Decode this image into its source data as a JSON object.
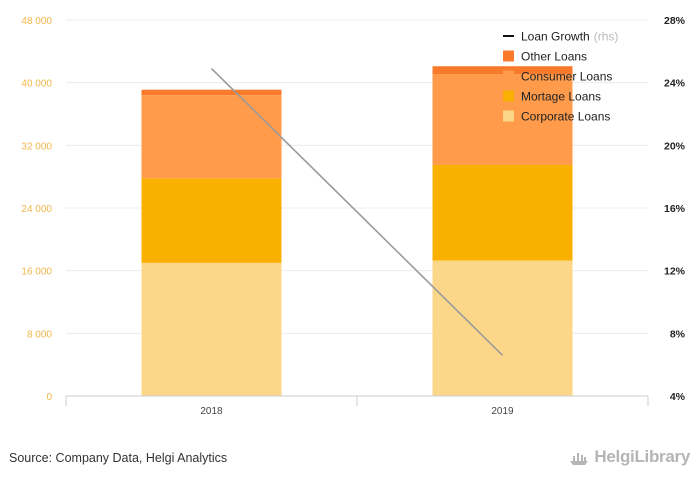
{
  "chart_data": {
    "type": "bar",
    "stacked": true,
    "categories": [
      "2018",
      "2019"
    ],
    "series": [
      {
        "name": "Corporate Loans",
        "color": "#fcd78a",
        "values": [
          17000,
          17300
        ]
      },
      {
        "name": "Mortage Loans",
        "color": "#f9b000",
        "values": [
          10800,
          12200
        ]
      },
      {
        "name": "Consumer Loans",
        "color": "#ff9b4a",
        "values": [
          10600,
          11600
        ]
      },
      {
        "name": "Other Loans",
        "color": "#fa7a2b",
        "values": [
          700,
          1000
        ]
      }
    ],
    "line_series": {
      "name": "Loan Growth",
      "suffix": "(rhs)",
      "color": "#9a9a9a",
      "values": [
        24.9,
        6.6
      ]
    },
    "y_left": {
      "min": 0,
      "max": 48000,
      "ticks": [
        "0",
        "8 000",
        "16 000",
        "24 000",
        "32 000",
        "40 000",
        "48 000"
      ]
    },
    "y_right": {
      "min": 4,
      "max": 28,
      "ticks": [
        "4%",
        "8%",
        "12%",
        "16%",
        "20%",
        "24%",
        "28%"
      ]
    },
    "legend": [
      {
        "label": "Loan Growth",
        "suffix": "(rhs)",
        "color": "#111111",
        "kind": "line"
      },
      {
        "label": "Other Loans",
        "color": "#fa7a2b",
        "kind": "box"
      },
      {
        "label": "Consumer Loans",
        "color": "#ff9b4a",
        "kind": "box"
      },
      {
        "label": "Mortage Loans",
        "color": "#f9b000",
        "kind": "box"
      },
      {
        "label": "Corporate Loans",
        "color": "#fcd78a",
        "kind": "box"
      }
    ],
    "legend_position": "top-right"
  },
  "footer": {
    "source": "Source: Company Data, Helgi Analytics",
    "brand": "HelgiLibrary"
  }
}
